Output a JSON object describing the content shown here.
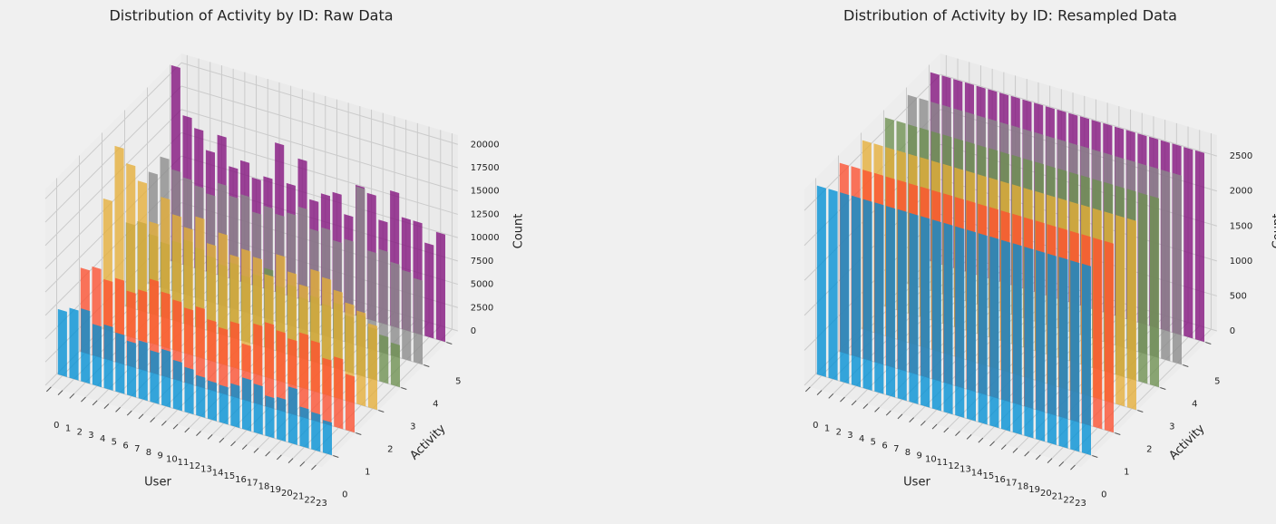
{
  "chart_data": [
    {
      "type": "bar3d",
      "title": "Distribution of Activity by ID: Raw Data",
      "xlabel": "User",
      "ylabel": "Activity",
      "zlabel": "Count",
      "categories": [
        "0",
        "1",
        "2",
        "3",
        "4",
        "5",
        "6",
        "7",
        "8",
        "9",
        "10",
        "11",
        "12",
        "13",
        "14",
        "15",
        "16",
        "17",
        "18",
        "19",
        "20",
        "21",
        "22",
        "23"
      ],
      "ylim": [
        -0.5,
        5.5
      ],
      "yticks": [
        0,
        1,
        2,
        3,
        4,
        5
      ],
      "zlim": [
        0,
        21000
      ],
      "zticks": [
        0,
        2500,
        5000,
        7500,
        10000,
        12500,
        15000,
        17500,
        20000
      ],
      "series": [
        {
          "y": 0,
          "color": "#008fd5",
          "values": [
            7000,
            7500,
            7800,
            6500,
            6800,
            6300,
            5800,
            6200,
            5500,
            6000,
            5200,
            4800,
            4300,
            4100,
            4000,
            4500,
            5500,
            5200,
            4300,
            4500,
            6000,
            4200,
            4000,
            3500
          ]
        },
        {
          "y": 1,
          "color": "#fc4f30",
          "values": [
            9000,
            9500,
            8500,
            9000,
            8000,
            8500,
            10000,
            9000,
            8500,
            8000,
            8500,
            7500,
            7000,
            8000,
            6000,
            8500,
            9000,
            8500,
            8000,
            9000,
            8500,
            7000,
            7500,
            6000
          ]
        },
        {
          "y": 2,
          "color": "#e5ae38",
          "values": [
            14000,
            20000,
            18500,
            17000,
            13000,
            16000,
            14500,
            13500,
            15000,
            12500,
            14000,
            12000,
            13000,
            12500,
            11000,
            13500,
            12000,
            11000,
            13000,
            12500,
            11500,
            10500,
            10000,
            9000
          ]
        },
        {
          "y": 3,
          "color": "#6d904f",
          "values": [
            9000,
            9500,
            8500,
            8000,
            8500,
            9000,
            8500,
            8000,
            7500,
            8000,
            7000,
            7500,
            8500,
            7000,
            7500,
            6500,
            7000,
            6500,
            7000,
            6000,
            6500,
            5500,
            5000,
            4500
          ]
        },
        {
          "y": 4,
          "color": "#8b8b8b",
          "values": [
            12000,
            14000,
            13000,
            12500,
            12000,
            11500,
            13000,
            12000,
            12500,
            11000,
            12000,
            11500,
            12000,
            13000,
            11000,
            11500,
            10500,
            11000,
            17000,
            10500,
            11000,
            10000,
            9500,
            9000
          ]
        },
        {
          "y": 5,
          "color": "#810f7c",
          "values": [
            21000,
            16000,
            15000,
            13000,
            15000,
            12000,
            13000,
            11500,
            12000,
            16000,
            12000,
            15000,
            11000,
            12000,
            12500,
            10500,
            14000,
            13500,
            11000,
            14500,
            12000,
            12000,
            10000,
            11500
          ]
        }
      ]
    },
    {
      "type": "bar3d",
      "title": "Distribution of Activity by ID: Resampled Data",
      "xlabel": "User",
      "ylabel": "Activity",
      "zlabel": "Count",
      "categories": [
        "0",
        "1",
        "2",
        "3",
        "4",
        "5",
        "6",
        "7",
        "8",
        "9",
        "10",
        "11",
        "12",
        "13",
        "14",
        "15",
        "16",
        "17",
        "18",
        "19",
        "20",
        "21",
        "22",
        "23"
      ],
      "ylim": [
        -0.5,
        5.5
      ],
      "yticks": [
        0,
        1,
        2,
        3,
        4,
        5
      ],
      "zlim": [
        0,
        2800
      ],
      "zticks": [
        0,
        500,
        1000,
        1500,
        2000,
        2500
      ],
      "series": [
        {
          "y": 0,
          "color": "#008fd5",
          "values": [
            2700,
            2700,
            2700,
            2700,
            2700,
            2700,
            2700,
            2700,
            2700,
            2700,
            2700,
            2700,
            2700,
            2700,
            2700,
            2700,
            2700,
            2700,
            2700,
            2700,
            2700,
            2700,
            2700,
            2700
          ]
        },
        {
          "y": 1,
          "color": "#fc4f30",
          "values": [
            2700,
            2700,
            2700,
            2700,
            2700,
            2700,
            2700,
            2700,
            2700,
            2700,
            2700,
            2700,
            2700,
            2700,
            2700,
            2700,
            2700,
            2700,
            2700,
            2700,
            2700,
            2700,
            2700,
            2700
          ]
        },
        {
          "y": 2,
          "color": "#e5ae38",
          "values": [
            2700,
            2700,
            2700,
            2700,
            2700,
            2700,
            2700,
            2700,
            2700,
            2700,
            2700,
            2700,
            2700,
            2700,
            2700,
            2700,
            2700,
            2700,
            2700,
            2700,
            2700,
            2700,
            2700,
            2700
          ]
        },
        {
          "y": 3,
          "color": "#6d904f",
          "values": [
            2700,
            2700,
            2700,
            2700,
            2700,
            2700,
            2700,
            2700,
            2700,
            2700,
            2700,
            2700,
            2700,
            2700,
            2700,
            2700,
            2700,
            2700,
            2700,
            2700,
            2700,
            2700,
            2700,
            2700
          ]
        },
        {
          "y": 4,
          "color": "#8b8b8b",
          "values": [
            2700,
            2700,
            2700,
            2700,
            2700,
            2700,
            2700,
            2700,
            2700,
            2700,
            2700,
            2700,
            2700,
            2700,
            2700,
            2700,
            2700,
            2700,
            2700,
            2700,
            2700,
            2700,
            2700,
            2700
          ]
        },
        {
          "y": 5,
          "color": "#810f7c",
          "values": [
            2700,
            2700,
            2700,
            2700,
            2700,
            2700,
            2700,
            2700,
            2700,
            2700,
            2700,
            2700,
            2700,
            2700,
            2700,
            2700,
            2700,
            2700,
            2700,
            2700,
            2700,
            2700,
            2700,
            2700
          ]
        }
      ]
    }
  ]
}
